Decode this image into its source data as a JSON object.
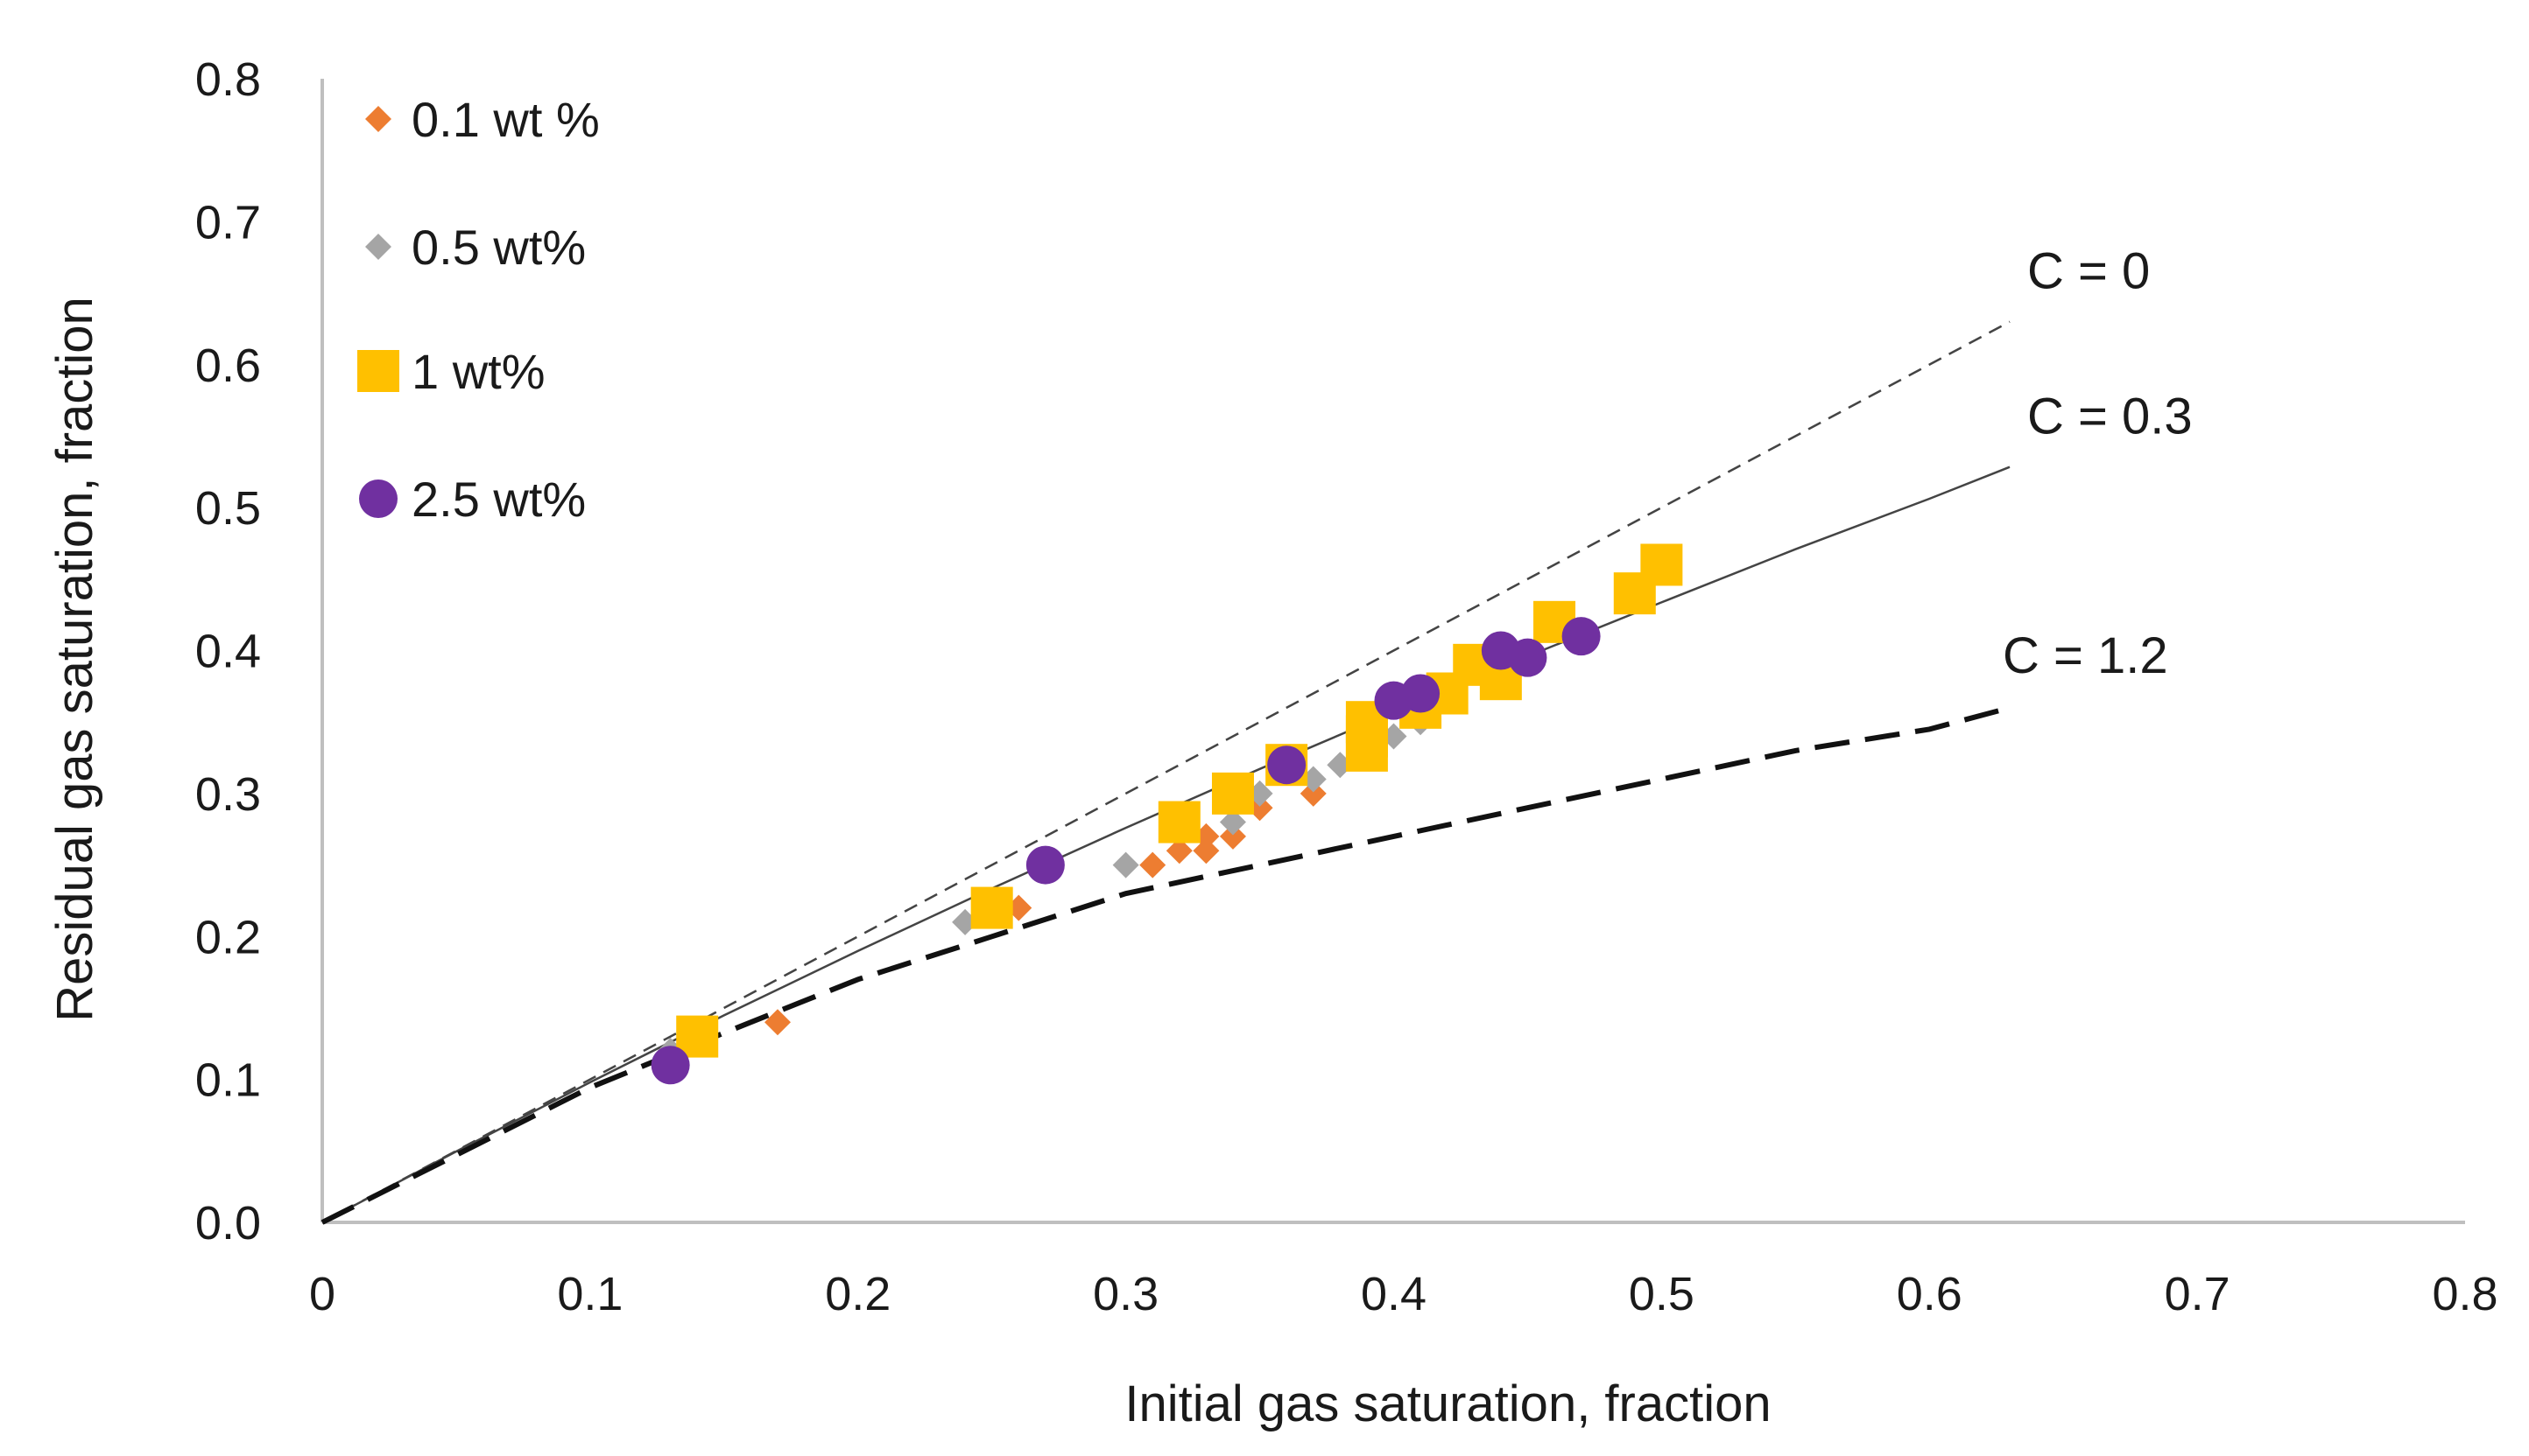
{
  "chart_data": {
    "type": "scatter",
    "title": "",
    "xlabel": "Initial gas saturation, fraction",
    "ylabel": "Residual gas saturation, fraction",
    "xlim": [
      0,
      0.8
    ],
    "ylim": [
      0,
      0.8
    ],
    "x_ticks": [
      0,
      0.1,
      0.2,
      0.3,
      0.4,
      0.5,
      0.6,
      0.7,
      0.8
    ],
    "x_tick_labels": [
      "0",
      "0.1",
      "0.2",
      "0.3",
      "0.4",
      "0.5",
      "0.6",
      "0.7",
      "0.8"
    ],
    "y_ticks": [
      0,
      0.1,
      0.2,
      0.3,
      0.4,
      0.5,
      0.6,
      0.7,
      0.8
    ],
    "y_tick_labels": [
      "0.0",
      "0.1",
      "0.2",
      "0.3",
      "0.4",
      "0.5",
      "0.6",
      "0.7",
      "0.8"
    ],
    "grid": false,
    "legend_position": "top-left",
    "series": [
      {
        "name": "0.1 wt %",
        "marker": "diamond",
        "color": "#ED7D31",
        "size": "small",
        "x": [
          0.17,
          0.26,
          0.31,
          0.32,
          0.33,
          0.33,
          0.34,
          0.35,
          0.37
        ],
        "y": [
          0.14,
          0.22,
          0.25,
          0.26,
          0.26,
          0.27,
          0.27,
          0.29,
          0.3
        ]
      },
      {
        "name": "0.5 wt%",
        "marker": "diamond",
        "color": "#A5A5A5",
        "size": "small",
        "x": [
          0.13,
          0.24,
          0.3,
          0.34,
          0.35,
          0.37,
          0.38,
          0.4,
          0.41
        ],
        "y": [
          0.12,
          0.21,
          0.25,
          0.28,
          0.3,
          0.31,
          0.32,
          0.34,
          0.35
        ]
      },
      {
        "name": "1 wt%",
        "marker": "square",
        "color": "#FFC000",
        "size": "large",
        "x": [
          0.14,
          0.25,
          0.32,
          0.34,
          0.36,
          0.39,
          0.39,
          0.39,
          0.41,
          0.42,
          0.43,
          0.44,
          0.46,
          0.49,
          0.5
        ],
        "y": [
          0.13,
          0.22,
          0.28,
          0.3,
          0.32,
          0.33,
          0.34,
          0.35,
          0.36,
          0.37,
          0.39,
          0.38,
          0.42,
          0.44,
          0.46
        ]
      },
      {
        "name": "2.5 wt%",
        "marker": "circle",
        "color": "#7030A0",
        "size": "large",
        "x": [
          0.13,
          0.27,
          0.36,
          0.4,
          0.41,
          0.44,
          0.45,
          0.47
        ],
        "y": [
          0.11,
          0.25,
          0.32,
          0.365,
          0.37,
          0.4,
          0.395,
          0.41
        ]
      }
    ],
    "curves": [
      {
        "label": "C = 0",
        "style": "thin-dashed",
        "color": "#444444",
        "x": [
          0,
          0.63
        ],
        "y": [
          0,
          0.63
        ]
      },
      {
        "label": "C = 0.3",
        "style": "solid",
        "color": "#444444",
        "x": [
          0,
          0.05,
          0.1,
          0.15,
          0.2,
          0.25,
          0.3,
          0.35,
          0.4,
          0.45,
          0.5,
          0.55,
          0.6,
          0.63
        ],
        "y": [
          0,
          0.0496,
          0.098,
          0.1448,
          0.1899,
          0.2336,
          0.276,
          0.3172,
          0.3571,
          0.396,
          0.4337,
          0.4709,
          0.5062,
          0.5284
        ]
      },
      {
        "label": "C = 1.2",
        "style": "bold-dashed",
        "color": "#111111",
        "x": [
          0,
          0.05,
          0.1,
          0.15,
          0.2,
          0.25,
          0.3,
          0.35,
          0.4,
          0.45,
          0.5,
          0.55,
          0.6,
          0.63
        ],
        "y": [
          0,
          0.0471,
          0.0943,
          0.1325,
          0.17,
          0.2,
          0.23,
          0.25,
          0.27,
          0.29,
          0.31,
          0.33,
          0.345,
          0.36
        ]
      }
    ]
  }
}
